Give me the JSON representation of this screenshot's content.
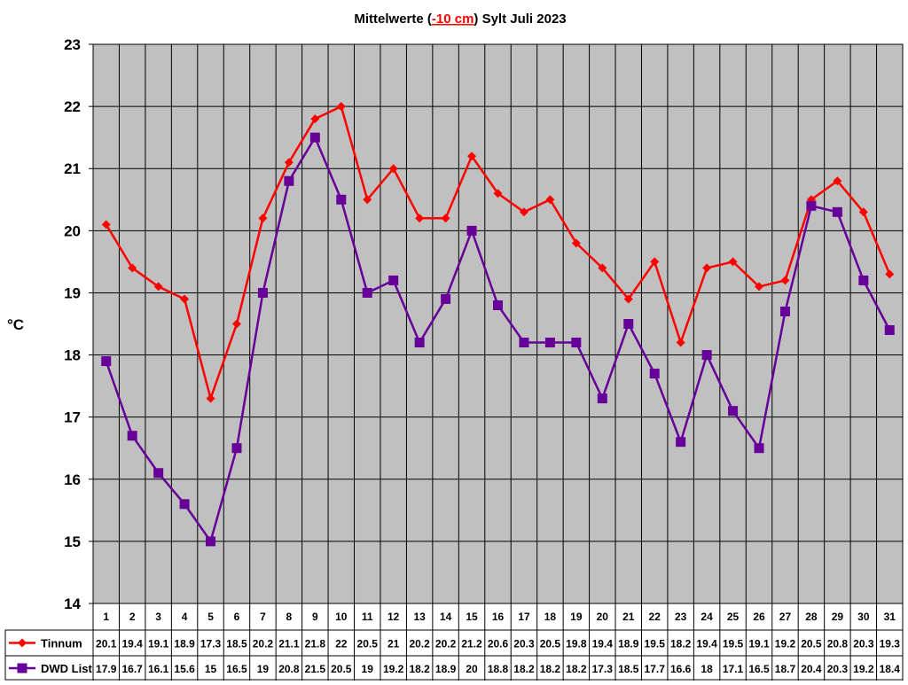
{
  "chart_data": {
    "type": "line",
    "title_parts": [
      "Mittelwerte (",
      "-10 cm",
      ") Sylt Juli 2023"
    ],
    "title_highlight_color": "#ff0000",
    "ylabel": "°C",
    "xlabel": "",
    "ylim": [
      14,
      23
    ],
    "yticks": [
      14,
      15,
      16,
      17,
      18,
      19,
      20,
      21,
      22,
      23
    ],
    "grid": true,
    "plot_background": "#c0c0c0",
    "legend_placement": "data-table-bottom",
    "categories": [
      "1",
      "2",
      "3",
      "4",
      "5",
      "6",
      "7",
      "8",
      "9",
      "10",
      "11",
      "12",
      "13",
      "14",
      "15",
      "16",
      "17",
      "18",
      "19",
      "20",
      "21",
      "22",
      "23",
      "24",
      "25",
      "26",
      "27",
      "28",
      "29",
      "30",
      "31"
    ],
    "series": [
      {
        "name": "Tinnum",
        "color": "#ff0000",
        "marker": "diamond",
        "values": [
          20.1,
          19.4,
          19.1,
          18.9,
          17.3,
          18.5,
          20.2,
          21.1,
          21.8,
          22,
          20.5,
          21,
          20.2,
          20.2,
          21.2,
          20.6,
          20.3,
          20.5,
          19.8,
          19.4,
          18.9,
          19.5,
          18.2,
          19.4,
          19.5,
          19.1,
          19.2,
          20.5,
          20.8,
          20.3,
          19.3
        ]
      },
      {
        "name": "DWD List",
        "color": "#660099",
        "marker": "square",
        "values": [
          17.9,
          16.7,
          16.1,
          15.6,
          15,
          16.5,
          19,
          20.8,
          21.5,
          20.5,
          19,
          19.2,
          18.2,
          18.9,
          20,
          18.8,
          18.2,
          18.2,
          18.2,
          17.3,
          18.5,
          17.7,
          16.6,
          18,
          17.1,
          16.5,
          18.7,
          20.4,
          20.3,
          19.2,
          18.4
        ]
      }
    ]
  }
}
